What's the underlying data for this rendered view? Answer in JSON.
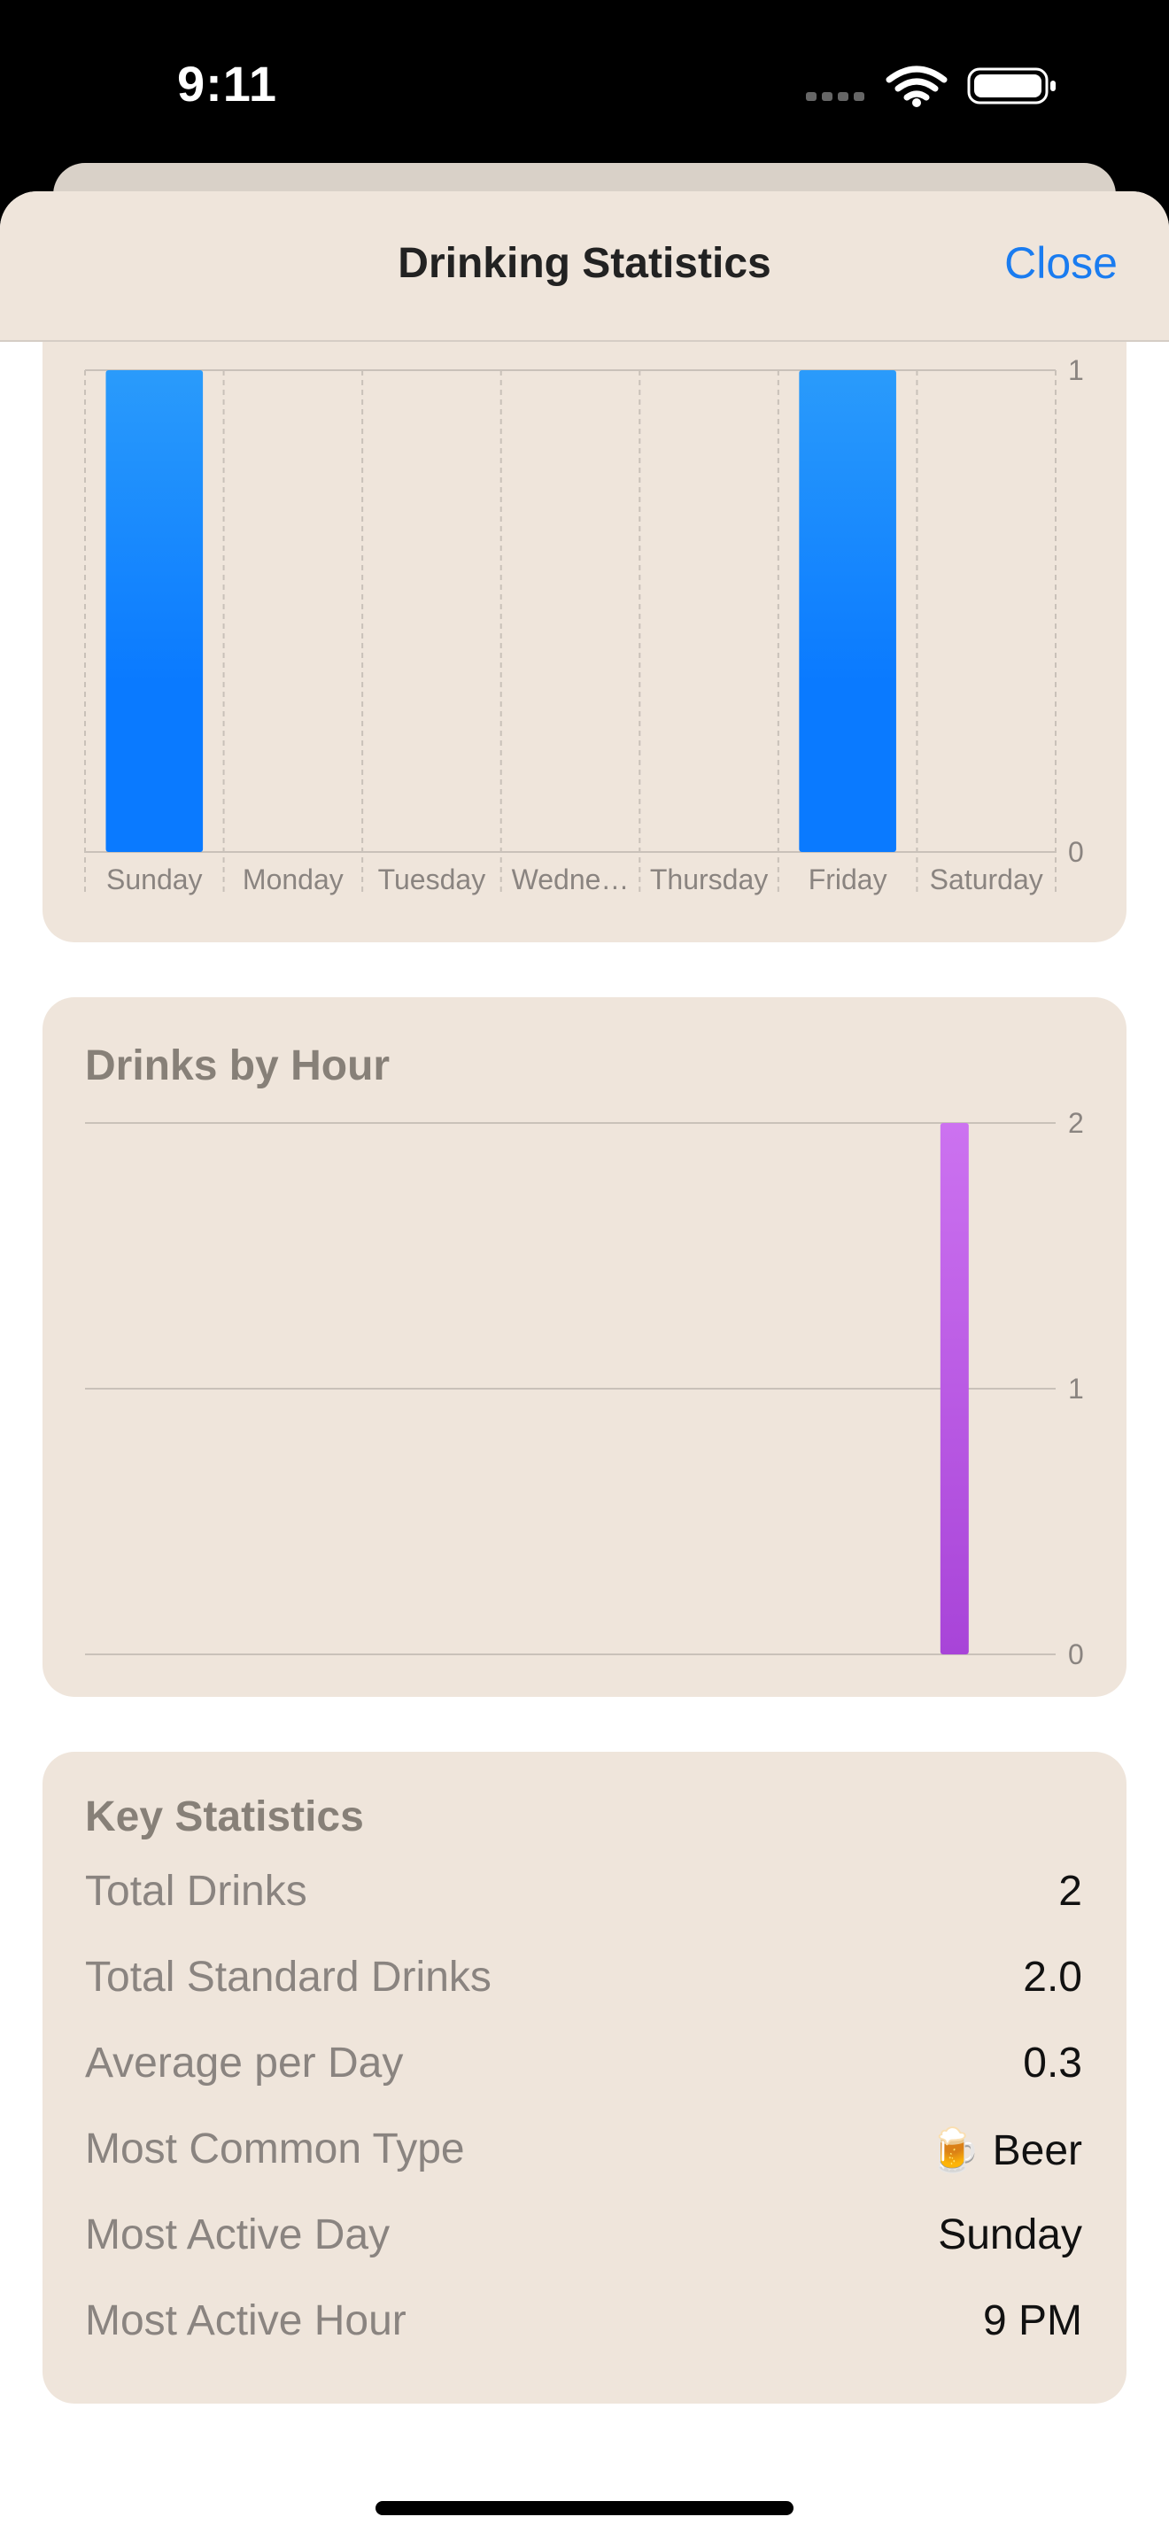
{
  "status_bar": {
    "time": "9:11"
  },
  "nav": {
    "title": "Drinking Statistics",
    "close_label": "Close"
  },
  "weekday_chart": {
    "chart_data": {
      "type": "bar",
      "categories": [
        "Sunday",
        "Monday",
        "Tuesday",
        "Wedne…",
        "Thursday",
        "Friday",
        "Saturday"
      ],
      "values": [
        1,
        0,
        0,
        0,
        0,
        1,
        0
      ],
      "ylim": [
        0,
        1
      ],
      "yticks": [
        0,
        1
      ],
      "color": "#0a7aff",
      "grid": true
    }
  },
  "hour_chart": {
    "title": "Drinks by Hour",
    "chart_data": {
      "type": "bar",
      "x": [
        21
      ],
      "values": [
        2
      ],
      "xlim": [
        0,
        23
      ],
      "ylim": [
        0,
        2
      ],
      "yticks": [
        0,
        1,
        2
      ],
      "color": "#b350e0",
      "grid": true
    }
  },
  "key_stats": {
    "title": "Key Statistics",
    "rows": [
      {
        "label": "Total Drinks",
        "value": "2"
      },
      {
        "label": "Total Standard Drinks",
        "value": "2.0"
      },
      {
        "label": "Average per Day",
        "value": "0.3"
      },
      {
        "label": "Most Common Type",
        "value": "🍺 Beer"
      },
      {
        "label": "Most Active Day",
        "value": "Sunday"
      },
      {
        "label": "Most Active Hour",
        "value": "9 PM"
      }
    ]
  }
}
